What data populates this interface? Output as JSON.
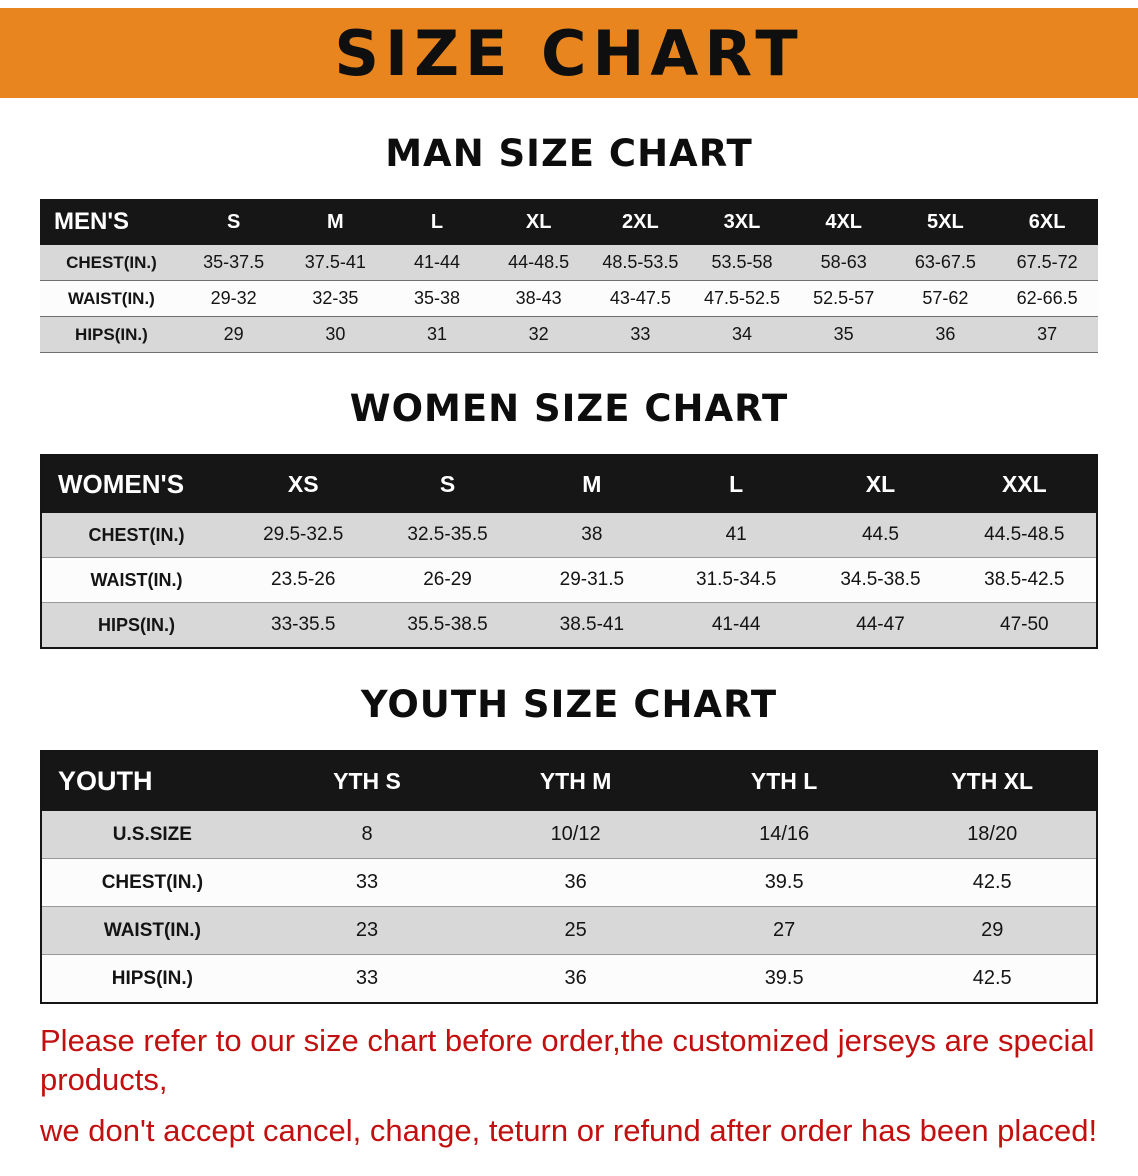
{
  "banner": {
    "title": "SIZE CHART"
  },
  "theme": {
    "banner_bg": "#e8851e",
    "banner_text": "#0f0f0f",
    "header_bg": "#161616",
    "header_text": "#ffffff",
    "row_alt_bg": "#d8d8d8",
    "row_bg": "#fcfcfc",
    "disclaimer_color": "#c21010"
  },
  "sections": {
    "men": {
      "heading": "MAN SIZE CHART",
      "table": {
        "header": [
          "MEN'S",
          "S",
          "M",
          "L",
          "XL",
          "2XL",
          "3XL",
          "4XL",
          "5XL",
          "6XL"
        ],
        "rows": [
          [
            "CHEST(IN.)",
            "35-37.5",
            "37.5-41",
            "41-44",
            "44-48.5",
            "48.5-53.5",
            "53.5-58",
            "58-63",
            "63-67.5",
            "67.5-72"
          ],
          [
            "WAIST(IN.)",
            "29-32",
            "32-35",
            "35-38",
            "38-43",
            "43-47.5",
            "47.5-52.5",
            "52.5-57",
            "57-62",
            "62-66.5"
          ],
          [
            "HIPS(IN.)",
            "29",
            "30",
            "31",
            "32",
            "33",
            "34",
            "35",
            "36",
            "37"
          ]
        ]
      }
    },
    "women": {
      "heading": "WOMEN SIZE CHART",
      "table": {
        "header": [
          "WOMEN'S",
          "XS",
          "S",
          "M",
          "L",
          "XL",
          "XXL"
        ],
        "rows": [
          [
            "CHEST(IN.)",
            "29.5-32.5",
            "32.5-35.5",
            "38",
            "41",
            "44.5",
            "44.5-48.5"
          ],
          [
            "WAIST(IN.)",
            "23.5-26",
            "26-29",
            "29-31.5",
            "31.5-34.5",
            "34.5-38.5",
            "38.5-42.5"
          ],
          [
            "HIPS(IN.)",
            "33-35.5",
            "35.5-38.5",
            "38.5-41",
            "41-44",
            "44-47",
            "47-50"
          ]
        ]
      }
    },
    "youth": {
      "heading": "YOUTH SIZE CHART",
      "table": {
        "header": [
          "YOUTH",
          "YTH S",
          "YTH M",
          "YTH L",
          "YTH XL"
        ],
        "rows": [
          [
            "U.S.SIZE",
            "8",
            "10/12",
            "14/16",
            "18/20"
          ],
          [
            "CHEST(IN.)",
            "33",
            "36",
            "39.5",
            "42.5"
          ],
          [
            "WAIST(IN.)",
            "23",
            "25",
            "27",
            "29"
          ],
          [
            "HIPS(IN.)",
            "33",
            "36",
            "39.5",
            "42.5"
          ]
        ]
      }
    }
  },
  "disclaimer": {
    "line1": "Please refer to our size chart before order,the customized jerseys are special products,",
    "line2": "we don't accept cancel, change, teturn or refund after order has been placed!"
  }
}
